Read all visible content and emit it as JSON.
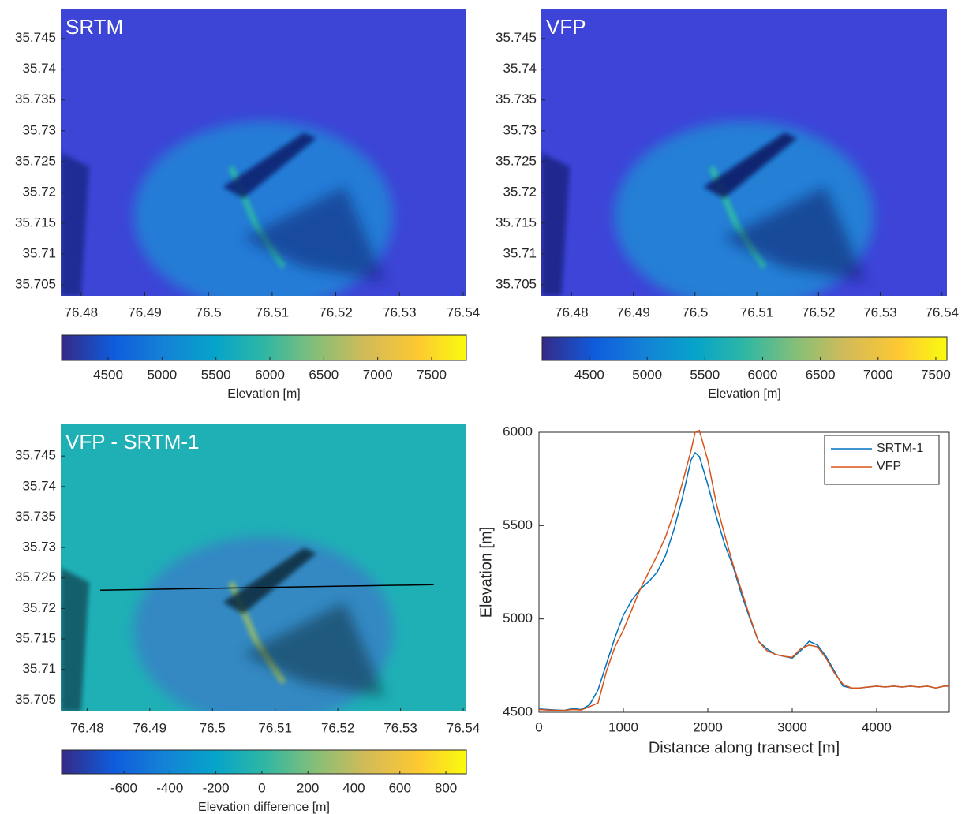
{
  "chart_data": [
    {
      "type": "map",
      "title": "SRTM",
      "xlim": [
        76.4768,
        76.5405
      ],
      "ylim": [
        35.7032,
        35.7497
      ],
      "xticks": [
        76.48,
        76.49,
        76.5,
        76.51,
        76.52,
        76.53,
        76.54
      ],
      "yticks": [
        35.705,
        35.71,
        35.715,
        35.72,
        35.725,
        35.73,
        35.735,
        35.74,
        35.745
      ],
      "colorbar": {
        "label": "Elevation [m]",
        "lim": [
          4068,
          7822
        ],
        "ticks": [
          4500,
          5000,
          5500,
          6000,
          6500,
          7000,
          7500
        ]
      }
    },
    {
      "type": "map",
      "title": "VFP",
      "xlim": [
        76.4751,
        76.5408
      ],
      "ylim": [
        35.7032,
        35.7497
      ],
      "xticks": [
        76.48,
        76.49,
        76.5,
        76.51,
        76.52,
        76.53,
        76.54
      ],
      "yticks": [
        35.705,
        35.71,
        35.715,
        35.72,
        35.725,
        35.73,
        35.735,
        35.74,
        35.745
      ],
      "colorbar": {
        "label": "Elevation [m]",
        "lim": [
          4090,
          7596
        ],
        "ticks": [
          4500,
          5000,
          5500,
          6000,
          6500,
          7000,
          7500
        ]
      }
    },
    {
      "type": "map",
      "title": "VFP - SRTM-1",
      "xlim": [
        76.4758,
        76.5405
      ],
      "ylim": [
        35.7031,
        35.7502
      ],
      "xticks": [
        76.48,
        76.49,
        76.5,
        76.51,
        76.52,
        76.53,
        76.54
      ],
      "yticks": [
        35.705,
        35.71,
        35.715,
        35.72,
        35.725,
        35.73,
        35.735,
        35.74,
        35.745
      ],
      "transect": {
        "x": [
          76.4821,
          76.5353
        ],
        "y": [
          35.723,
          35.7239
        ]
      },
      "colorbar": {
        "label": "Elevation difference [m]",
        "lim": [
          -871,
          889
        ],
        "ticks": [
          -600,
          -400,
          -200,
          0,
          200,
          400,
          600,
          800
        ]
      }
    },
    {
      "type": "line",
      "xlabel": "Distance along transect [m]",
      "ylabel": "Elevation [m]",
      "xlim": [
        0,
        4860
      ],
      "ylim": [
        4500,
        6000
      ],
      "xticks": [
        0,
        1000,
        2000,
        3000,
        4000
      ],
      "yticks": [
        4500,
        5000,
        5500,
        6000
      ],
      "legend": "upper right",
      "x": [
        0,
        100,
        200,
        300,
        400,
        500,
        600,
        700,
        800,
        900,
        1000,
        1100,
        1200,
        1300,
        1400,
        1500,
        1600,
        1700,
        1800,
        1850,
        1900,
        2000,
        2100,
        2200,
        2300,
        2400,
        2500,
        2600,
        2700,
        2800,
        2900,
        3000,
        3100,
        3200,
        3300,
        3400,
        3500,
        3600,
        3700,
        3800,
        3900,
        4000,
        4100,
        4200,
        4300,
        4400,
        4500,
        4600,
        4700,
        4800,
        4860
      ],
      "series": [
        {
          "name": "SRTM-1",
          "color": "#0072BD",
          "values": [
            4518,
            4515,
            4512,
            4510,
            4520,
            4515,
            4540,
            4620,
            4760,
            4900,
            5020,
            5100,
            5160,
            5200,
            5250,
            5340,
            5480,
            5650,
            5850,
            5890,
            5870,
            5720,
            5550,
            5400,
            5280,
            5130,
            5000,
            4880,
            4840,
            4810,
            4800,
            4790,
            4830,
            4880,
            4860,
            4800,
            4720,
            4640,
            4630,
            4630,
            4635,
            4640,
            4635,
            4640,
            4635,
            4640,
            4635,
            4640,
            4630,
            4640,
            4640
          ]
        },
        {
          "name": "VFP",
          "color": "#D95319",
          "values": [
            4515,
            4512,
            4510,
            4510,
            4515,
            4512,
            4530,
            4550,
            4720,
            4850,
            4940,
            5050,
            5160,
            5250,
            5340,
            5440,
            5570,
            5730,
            5900,
            6000,
            6010,
            5850,
            5620,
            5450,
            5290,
            5150,
            5010,
            4880,
            4830,
            4810,
            4800,
            4795,
            4840,
            4860,
            4850,
            4790,
            4710,
            4650,
            4630,
            4630,
            4635,
            4640,
            4635,
            4640,
            4635,
            4640,
            4635,
            4640,
            4630,
            4640,
            4640
          ]
        }
      ]
    }
  ]
}
